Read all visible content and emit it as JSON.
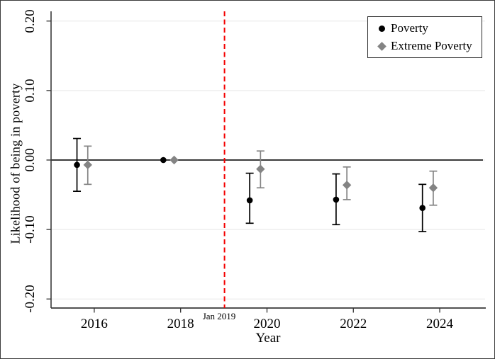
{
  "figure": {
    "background": "#ffffff",
    "border_color": "#3c3c3c"
  },
  "y_axis": {
    "title": "Likelihood of being in poverty",
    "ticks": [
      0.2,
      0.1,
      0.0,
      -0.1,
      -0.2
    ],
    "tick_labels": [
      "0.20",
      "0.10",
      "0.00",
      "-0.10",
      "-0.20"
    ]
  },
  "x_axis": {
    "title": "Year",
    "ticks": [
      2016,
      2018,
      2020,
      2022,
      2024
    ],
    "tick_labels": [
      "2016",
      "2018",
      "2020",
      "2022",
      "2024"
    ]
  },
  "reference_line": {
    "x": 2019.0,
    "label": "Jan 2019",
    "color": "#f40000",
    "style": "dashed"
  },
  "zero_line": {
    "y": 0.0,
    "color": "#3a3a3a"
  },
  "colors": {
    "poverty": "#000000",
    "extreme_poverty": "#848484",
    "gridline": "#e8e8e8",
    "axis": "#3a3a3a",
    "tick": "#333333"
  },
  "legend": {
    "items": [
      {
        "label": "Poverty",
        "marker": "circle",
        "color": "#000000"
      },
      {
        "label": "Extreme Poverty",
        "marker": "diamond",
        "color": "#848484"
      }
    ],
    "position": "top-right"
  },
  "chart_data": {
    "type": "scatter",
    "title": "",
    "xlabel": "Year",
    "ylabel": "Likelihood of being in poverty",
    "xlim": [
      2015.0,
      2025.05
    ],
    "ylim": [
      -0.213,
      0.214
    ],
    "grid": "horizontal",
    "vline": {
      "x": 2019.0,
      "label": "Jan 2019"
    },
    "series": [
      {
        "name": "Poverty",
        "marker": "circle",
        "color": "#000000",
        "points": [
          {
            "x": 2015.6,
            "year": 2016,
            "y": -0.007,
            "ci_low": -0.045,
            "ci_high": 0.031
          },
          {
            "x": 2017.6,
            "year": 2018,
            "y": 0.0,
            "ci_low": 0.0,
            "ci_high": 0.0
          },
          {
            "x": 2019.6,
            "year": 2020,
            "y": -0.058,
            "ci_low": -0.091,
            "ci_high": -0.019
          },
          {
            "x": 2021.6,
            "year": 2022,
            "y": -0.057,
            "ci_low": -0.093,
            "ci_high": -0.02
          },
          {
            "x": 2023.6,
            "year": 2024,
            "y": -0.069,
            "ci_low": -0.103,
            "ci_high": -0.035
          }
        ]
      },
      {
        "name": "Extreme Poverty",
        "marker": "diamond",
        "color": "#848484",
        "points": [
          {
            "x": 2015.85,
            "year": 2016,
            "y": -0.007,
            "ci_low": -0.035,
            "ci_high": 0.02
          },
          {
            "x": 2017.85,
            "year": 2018,
            "y": 0.0,
            "ci_low": 0.0,
            "ci_high": 0.0
          },
          {
            "x": 2019.85,
            "year": 2020,
            "y": -0.013,
            "ci_low": -0.04,
            "ci_high": 0.013
          },
          {
            "x": 2021.85,
            "year": 2022,
            "y": -0.036,
            "ci_low": -0.057,
            "ci_high": -0.01
          },
          {
            "x": 2023.85,
            "year": 2024,
            "y": -0.04,
            "ci_low": -0.065,
            "ci_high": -0.016
          }
        ]
      }
    ]
  }
}
